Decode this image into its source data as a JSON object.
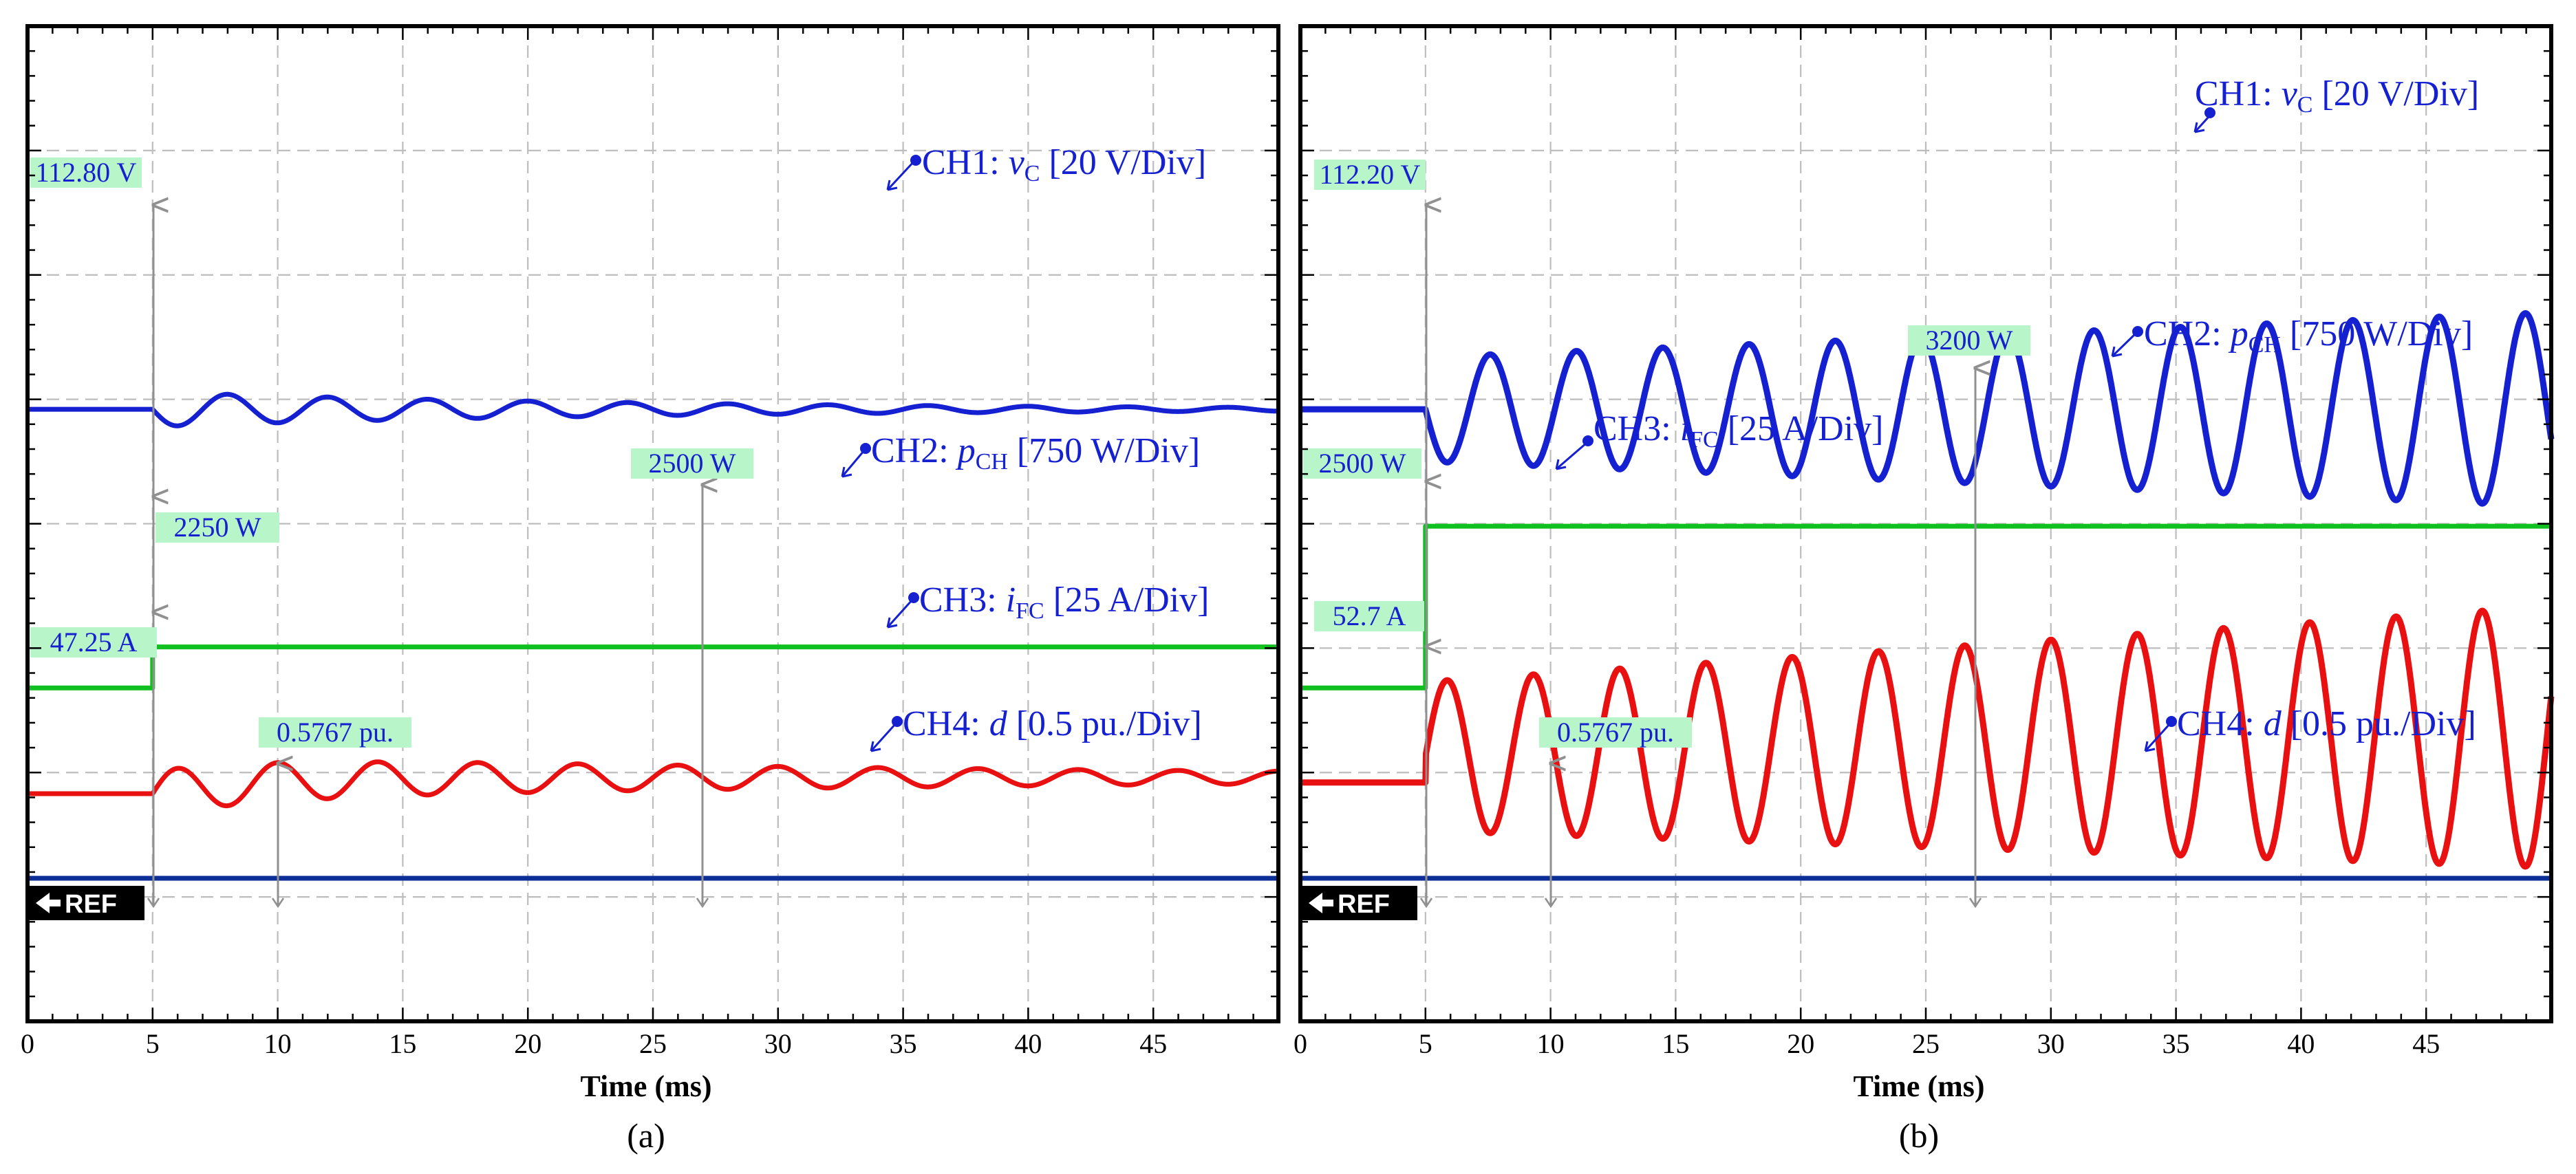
{
  "chart_data": [
    {
      "panel": "(a)",
      "type": "line",
      "xlabel": "Time (ms)",
      "xlim": [
        0,
        50
      ],
      "x_ticks": [
        "0",
        "5",
        "10",
        "15",
        "20",
        "25",
        "30",
        "35",
        "40",
        "45"
      ],
      "reference_marker": "REF",
      "step_time_ms": 5,
      "series": [
        {
          "name": "CH1",
          "label_main": "CH1: ",
          "label_var": "v",
          "label_sub": "C",
          "label_scale": " [20 V/Div]",
          "color": "#1520d0",
          "shape": "damped",
          "initial_value": 112.8,
          "offset_div": 4.92,
          "amp_div": 0.14,
          "freq_khz": 0.25,
          "decay_per_ms": 0.05
        },
        {
          "name": "CH2",
          "label_main": "CH2: ",
          "label_var": "p",
          "label_sub": "CH",
          "label_scale": " [750 W/Div]",
          "color": "#10c020",
          "shape": "step",
          "initial_value": 2250,
          "final_value": 2500,
          "pre_div": 2.68,
          "post_div": 3.01
        },
        {
          "name": "CH3",
          "label_main": "CH3: ",
          "label_var": "i",
          "label_sub": "FC",
          "label_scale": " [25 A/Div]",
          "color": "#e81010",
          "shape": "damped",
          "initial_value": 47.25,
          "offset_div": 1.83,
          "amp_div": 0.18,
          "freq_khz": 0.25,
          "decay_per_ms": 0.028,
          "settle_div": 1.96
        },
        {
          "name": "CH4",
          "label_main": "CH4: ",
          "label_var": "d",
          "label_sub": "",
          "label_scale": " [0.5 pu./Div]",
          "color": "#0b2f96",
          "shape": "flat",
          "value": 0.5767,
          "level_div": 1.15
        }
      ],
      "annotations": [
        "112.80 V",
        "2250 W",
        "2500 W",
        "47.25 A",
        "0.5767 pu."
      ]
    },
    {
      "panel": "(b)",
      "type": "line",
      "xlabel": "Time (ms)",
      "xlim": [
        0,
        50
      ],
      "x_ticks": [
        "0",
        "5",
        "10",
        "15",
        "20",
        "25",
        "30",
        "35",
        "40",
        "45"
      ],
      "reference_marker": "REF",
      "step_time_ms": 5,
      "series": [
        {
          "name": "CH1",
          "label_main": "CH1: ",
          "label_var": "v",
          "label_sub": "C",
          "label_scale": " [20 V/Div]",
          "color": "#1520d0",
          "shape": "growing",
          "initial_value": 112.2,
          "offset_div": 4.92,
          "amp_start_div": 0.42,
          "amp_end_div": 0.78,
          "freq_khz": 0.29
        },
        {
          "name": "CH2",
          "label_main": "CH2: ",
          "label_var": "p",
          "label_sub": "CH",
          "label_scale": " [750 W/Div]",
          "color": "#10c020",
          "shape": "step",
          "initial_value": 2500,
          "final_value": 3200,
          "pre_div": 2.68,
          "post_div": 3.98
        },
        {
          "name": "CH3",
          "label_main": "CH3: ",
          "label_var": "i",
          "label_sub": "FC",
          "label_scale": " [25 A/Div]",
          "color": "#e81010",
          "shape": "growing",
          "initial_value": 52.7,
          "offset_div": 1.92,
          "amp_start_div": 0.6,
          "amp_end_div": 1.05,
          "freq_khz": 0.29
        },
        {
          "name": "CH4",
          "label_main": "CH4: ",
          "label_var": "d",
          "label_sub": "",
          "label_scale": " [0.5 pu./Div]",
          "color": "#0b2f96",
          "shape": "flat",
          "value": 0.5767,
          "level_div": 1.15
        }
      ],
      "annotations": [
        "112.20 V",
        "2500 W",
        "3200 W",
        "52.7 A",
        "0.5767 pu."
      ]
    }
  ]
}
